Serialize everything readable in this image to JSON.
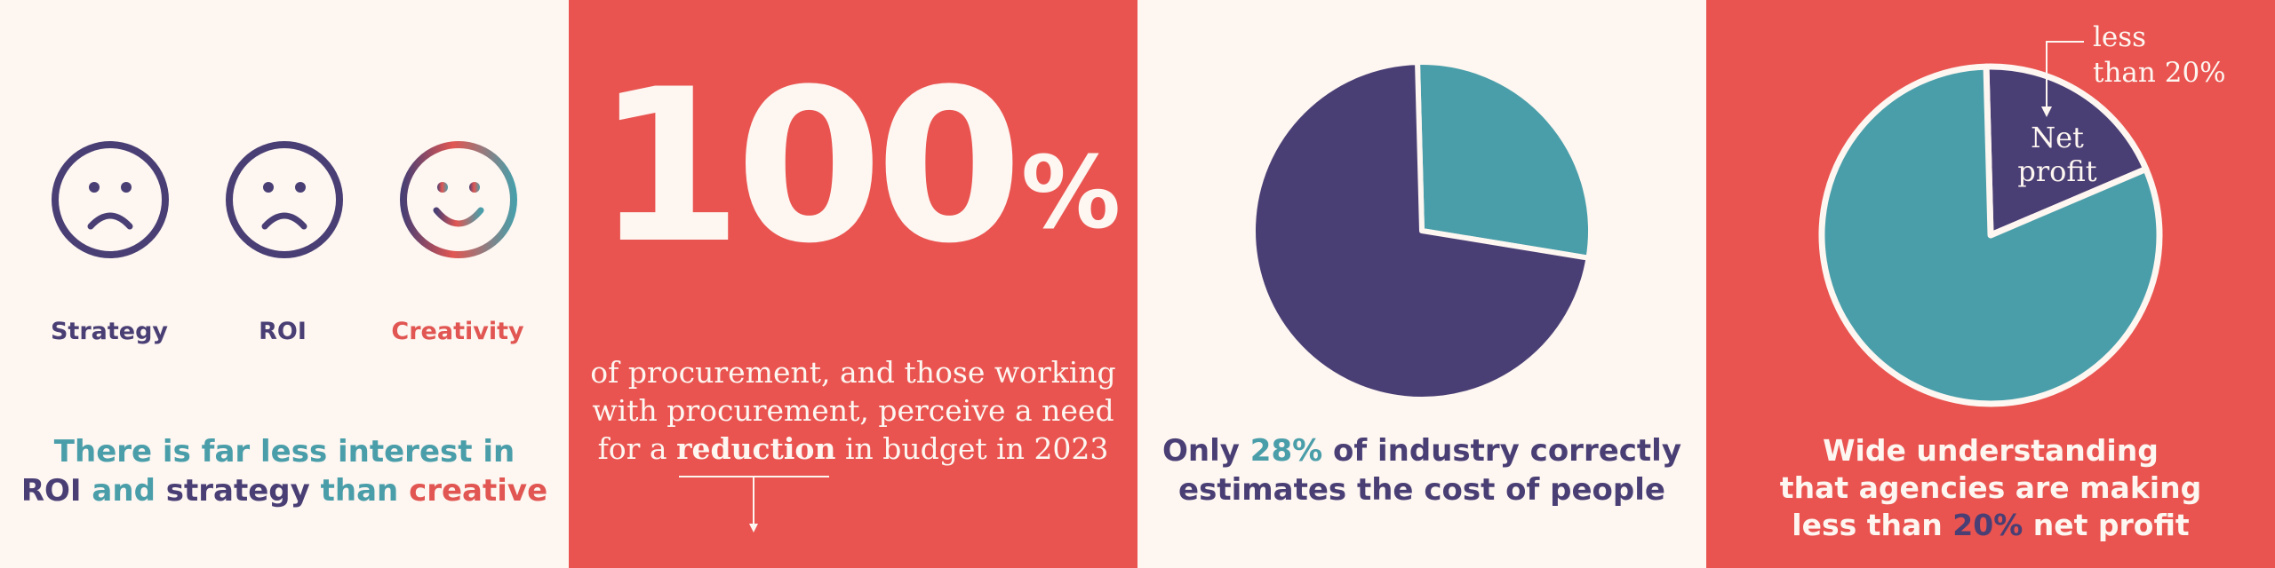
{
  "panel1": {
    "faces": [
      {
        "label": "Strategy",
        "mood": "sad",
        "icon": "sad-face-icon"
      },
      {
        "label": "ROI",
        "mood": "sad",
        "icon": "sad-face-icon"
      },
      {
        "label": "Creativity",
        "mood": "happy",
        "icon": "happy-face-icon"
      }
    ],
    "caption": {
      "line1": "There is far less interest in",
      "w_roi": "ROI",
      "w_and": "and",
      "w_strategy": "strategy",
      "w_than": "than",
      "w_creative": "creative"
    }
  },
  "panel2": {
    "big_number": "100",
    "big_unit": "%",
    "line1": "of procurement, and those working",
    "line2": "with procurement, perceive a need",
    "line3_pre": "for a",
    "line3_hl": "reduction",
    "line3_post": "in budget in 2023"
  },
  "panel3": {
    "caption": {
      "w_only": "Only",
      "w_pct": "28%",
      "w_rest": "of industry correctly",
      "line2": "estimates the cost of people"
    }
  },
  "panel4": {
    "annotation_line1": "less",
    "annotation_line2": "than 20%",
    "slice_line1": "Net",
    "slice_line2": "profit",
    "caption": {
      "line1": "Wide understanding",
      "line2": "that agencies are making",
      "line3_pre": "less than",
      "line3_pct": "20%",
      "line3_post": "net profit"
    }
  },
  "colors": {
    "cream": "#fdf6f1",
    "red": "#e95450",
    "purple": "#4a3f74",
    "teal": "#4a9ea9"
  },
  "chart_data": [
    {
      "type": "pie",
      "slices": [
        {
          "value": 28,
          "color": "#4a9ea9"
        },
        {
          "value": 72,
          "color": "#4a3f74"
        }
      ]
    },
    {
      "type": "pie",
      "slices": [
        {
          "value": 19,
          "color": "#4a3f74",
          "label": "Net profit"
        },
        {
          "value": 81,
          "color": "#4a9ea9"
        }
      ]
    }
  ]
}
